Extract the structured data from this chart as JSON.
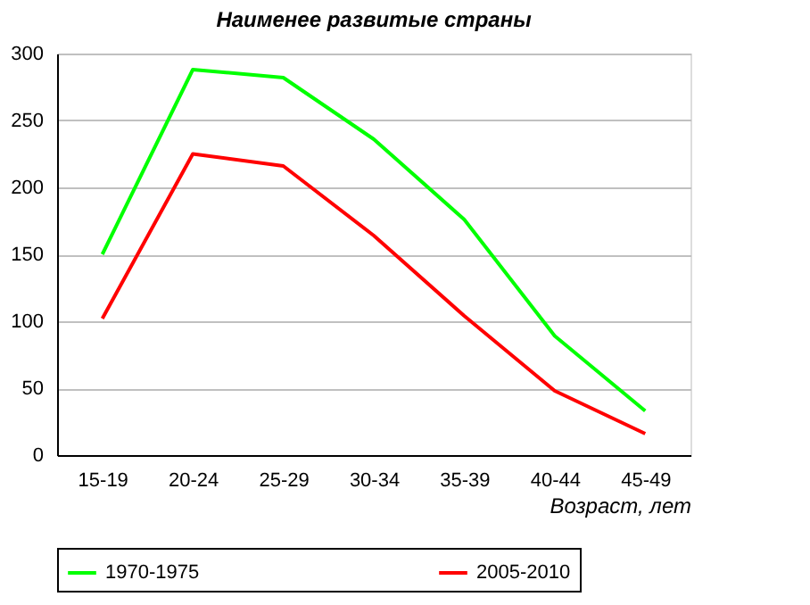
{
  "chart_data": {
    "type": "line",
    "title": "Наименее развитые страны",
    "xlabel": "Возраст, лет",
    "categories": [
      "15-19",
      "20-24",
      "25-29",
      "30-34",
      "35-39",
      "40-44",
      "45-49"
    ],
    "series": [
      {
        "name": "1970-1975",
        "color": "#00ff00",
        "values": [
          150,
          288,
          282,
          236,
          176,
          89,
          33
        ]
      },
      {
        "name": "2005-2010",
        "color": "#ff0000",
        "values": [
          102,
          225,
          216,
          164,
          104,
          48,
          16
        ]
      }
    ],
    "ylim": [
      0,
      300
    ],
    "yticks": [
      0,
      50,
      100,
      150,
      200,
      250,
      300
    ],
    "grid": "y",
    "legend": "bottom",
    "marker": "none",
    "line_style": "solid"
  }
}
